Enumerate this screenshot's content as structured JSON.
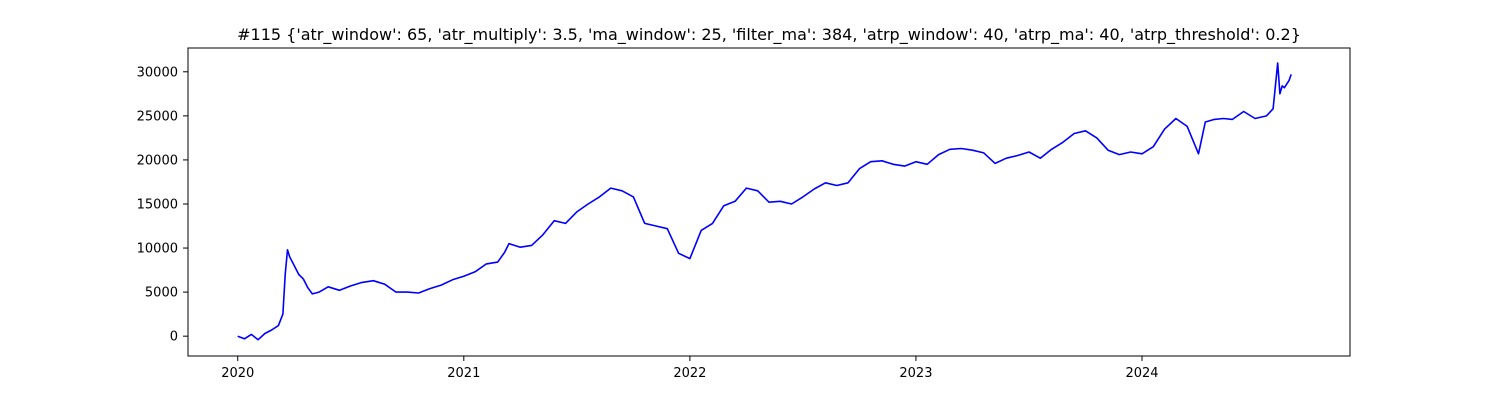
{
  "chart_data": {
    "type": "line",
    "title": "#115 {'atr_window': 65, 'atr_multiply': 3.5, 'ma_window': 25, 'filter_ma': 384, 'atrp_window': 40, 'atrp_ma': 40, 'atrp_threshold': 0.2}",
    "xlabel": "",
    "ylabel": "",
    "xlim": [
      2019.78,
      2024.92
    ],
    "ylim": [
      -2250,
      32700
    ],
    "x_ticks": [
      {
        "value": 2020,
        "label": "2020"
      },
      {
        "value": 2021,
        "label": "2021"
      },
      {
        "value": 2022,
        "label": "2022"
      },
      {
        "value": 2023,
        "label": "2023"
      },
      {
        "value": 2024,
        "label": "2024"
      }
    ],
    "y_ticks": [
      {
        "value": 0,
        "label": "0"
      },
      {
        "value": 5000,
        "label": "5000"
      },
      {
        "value": 10000,
        "label": "10000"
      },
      {
        "value": 15000,
        "label": "15000"
      },
      {
        "value": 20000,
        "label": "20000"
      },
      {
        "value": 25000,
        "label": "25000"
      },
      {
        "value": 30000,
        "label": "30000"
      }
    ],
    "grid": false,
    "legend": false,
    "series": [
      {
        "color": "#0000ff",
        "x": [
          2020.0,
          2020.03,
          2020.06,
          2020.09,
          2020.12,
          2020.15,
          2020.18,
          2020.2,
          2020.21,
          2020.22,
          2020.23,
          2020.25,
          2020.27,
          2020.29,
          2020.31,
          2020.33,
          2020.36,
          2020.4,
          2020.45,
          2020.5,
          2020.55,
          2020.6,
          2020.65,
          2020.7,
          2020.75,
          2020.8,
          2020.85,
          2020.9,
          2020.95,
          2021.0,
          2021.05,
          2021.1,
          2021.15,
          2021.18,
          2021.2,
          2021.25,
          2021.3,
          2021.35,
          2021.4,
          2021.45,
          2021.5,
          2021.55,
          2021.6,
          2021.65,
          2021.7,
          2021.75,
          2021.8,
          2021.85,
          2021.9,
          2021.95,
          2022.0,
          2022.05,
          2022.1,
          2022.15,
          2022.2,
          2022.25,
          2022.3,
          2022.35,
          2022.4,
          2022.45,
          2022.5,
          2022.55,
          2022.6,
          2022.65,
          2022.7,
          2022.75,
          2022.8,
          2022.85,
          2022.9,
          2022.95,
          2023.0,
          2023.05,
          2023.1,
          2023.15,
          2023.2,
          2023.25,
          2023.3,
          2023.35,
          2023.4,
          2023.45,
          2023.5,
          2023.55,
          2023.6,
          2023.65,
          2023.7,
          2023.75,
          2023.8,
          2023.85,
          2023.9,
          2023.95,
          2024.0,
          2024.05,
          2024.1,
          2024.15,
          2024.2,
          2024.25,
          2024.28,
          2024.32,
          2024.36,
          2024.4,
          2024.45,
          2024.5,
          2024.55,
          2024.58,
          2024.6,
          2024.61,
          2024.62,
          2024.63,
          2024.65,
          2024.66
        ],
        "y": [
          0,
          -300,
          200,
          -400,
          300,
          700,
          1200,
          2500,
          7000,
          9800,
          9000,
          8000,
          7000,
          6500,
          5500,
          4800,
          5000,
          5600,
          5200,
          5700,
          6100,
          6300,
          5900,
          5000,
          5000,
          4900,
          5400,
          5800,
          6400,
          6800,
          7300,
          8200,
          8400,
          9500,
          10500,
          10100,
          10300,
          11500,
          13100,
          12800,
          14100,
          15000,
          15800,
          16800,
          16500,
          15800,
          12800,
          12500,
          12200,
          9400,
          8800,
          12000,
          12800,
          14800,
          15300,
          16800,
          16500,
          15200,
          15300,
          15000,
          15800,
          16700,
          17400,
          17100,
          17400,
          19000,
          19800,
          19900,
          19500,
          19300,
          19800,
          19500,
          20600,
          21200,
          21300,
          21100,
          20800,
          19600,
          20200,
          20500,
          20900,
          20200,
          21200,
          22000,
          23000,
          23300,
          22500,
          21100,
          20600,
          20900,
          20700,
          21500,
          23500,
          24700,
          23800,
          20700,
          24300,
          24600,
          24700,
          24600,
          25500,
          24700,
          25000,
          25800,
          31000,
          27500,
          28400,
          28200,
          29000,
          29700
        ]
      }
    ]
  }
}
